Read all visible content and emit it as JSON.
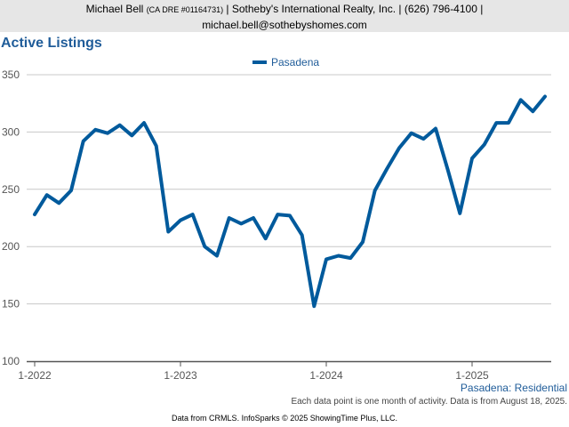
{
  "header": {
    "agent_name": "Michael Bell",
    "dre": "(CA DRE #01164731)",
    "company": " | Sotheby's International Realty, Inc. | (626) 796-4100 | ",
    "email": "michael.bell@sothebyshomes.com"
  },
  "caption": "Pasadena: Residential",
  "note": "Each data point is one month of activity. Data is from August 18, 2025.",
  "source": "Data from CRMLS. InfoSparks © 2025 ShowingTime Plus, LLC.",
  "colors": {
    "series": "#005a9c",
    "title": "#1f5c99",
    "grid": "#c8c8c8",
    "header_bg": "#e6e6e6"
  },
  "chart_data": {
    "type": "line",
    "title": "Active Listings",
    "x_tick_labels": [
      "1-2022",
      "1-2023",
      "1-2024",
      "1-2025"
    ],
    "y_ticks": [
      100,
      150,
      200,
      250,
      300,
      350
    ],
    "ylim": [
      100,
      355
    ],
    "grid": true,
    "legend_position": "top-center",
    "x": [
      "2022-01",
      "2022-02",
      "2022-03",
      "2022-04",
      "2022-05",
      "2022-06",
      "2022-07",
      "2022-08",
      "2022-09",
      "2022-10",
      "2022-11",
      "2022-12",
      "2023-01",
      "2023-02",
      "2023-03",
      "2023-04",
      "2023-05",
      "2023-06",
      "2023-07",
      "2023-08",
      "2023-09",
      "2023-10",
      "2023-11",
      "2023-12",
      "2024-01",
      "2024-02",
      "2024-03",
      "2024-04",
      "2024-05",
      "2024-06",
      "2024-07",
      "2024-08",
      "2024-09",
      "2024-10",
      "2024-11",
      "2024-12",
      "2025-01",
      "2025-02",
      "2025-03",
      "2025-04",
      "2025-05",
      "2025-06",
      "2025-07"
    ],
    "series": [
      {
        "name": "Pasadena",
        "values": [
          228,
          245,
          238,
          249,
          292,
          302,
          299,
          306,
          297,
          308,
          288,
          213,
          223,
          228,
          200,
          192,
          225,
          220,
          225,
          207,
          228,
          227,
          210,
          148,
          189,
          192,
          190,
          204,
          249,
          268,
          286,
          299,
          294,
          303,
          267,
          229,
          277,
          289,
          308,
          308,
          328,
          318,
          331
        ]
      }
    ]
  }
}
